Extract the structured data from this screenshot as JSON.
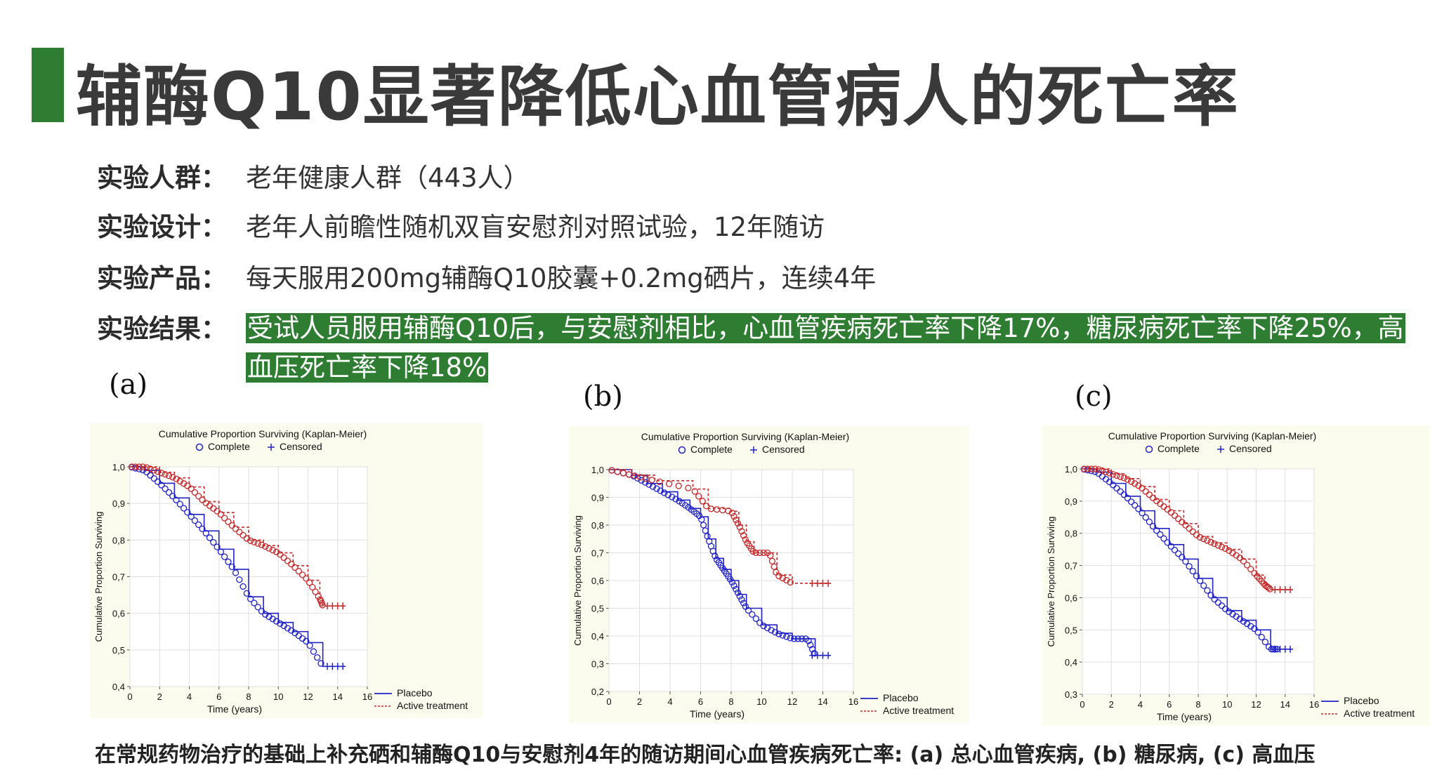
{
  "title": "辅酶Q10显著降低心血管病人的死亡率",
  "info": {
    "population": {
      "label": "实验人群：",
      "value": "老年健康人群（443人）"
    },
    "design": {
      "label": "实验设计：",
      "value": "老年人前瞻性随机双盲安慰剂对照试验，12年随访"
    },
    "product": {
      "label": "实验产品：",
      "value": "每天服用200mg辅酶Q10胶囊+0.2mg硒片，连续4年"
    },
    "result": {
      "label": "实验结果：",
      "value": "受试人员服用辅酶Q10后，与安慰剂相比，心血管疾病死亡率下降17%，糖尿病死亡率下降25%，高血压死亡率下降18%"
    }
  },
  "colors": {
    "accent": "#2e7d32",
    "placebo": "#1f22c8",
    "active": "#c62828"
  },
  "caption": "在常规药物治疗的基础上补充硒和辅酶Q10与安慰剂4年的随访期间心血管疾病死亡率: (a) 总心血管疾病, (b) 糖尿病, (c) 高血压",
  "chart_data": [
    {
      "panel": "(a)",
      "type": "line",
      "title": "Cumulative Proportion Surviving (Kaplan-Meier)",
      "legend_markers": [
        "Complete",
        "Censored"
      ],
      "xlabel": "Time (years)",
      "ylabel": "Cumulative Proportion Surviving",
      "xlim": [
        0,
        16
      ],
      "ylim": [
        0.4,
        1.0
      ],
      "xticks": [
        "0",
        "2",
        "4",
        "6",
        "8",
        "10",
        "12",
        "14",
        "16"
      ],
      "yticks": [
        "0,4",
        "0,5",
        "0,6",
        "0,7",
        "0,8",
        "0,9",
        "1,0"
      ],
      "legend_position": "bottom-right",
      "series": [
        {
          "name": "Placebo",
          "x": [
            0,
            1,
            2,
            3,
            4,
            5,
            6,
            7,
            8,
            9,
            10,
            11,
            12,
            13,
            14.5
          ],
          "y": [
            1.0,
            0.99,
            0.955,
            0.915,
            0.87,
            0.825,
            0.775,
            0.72,
            0.645,
            0.6,
            0.575,
            0.55,
            0.52,
            0.455,
            0.455
          ]
        },
        {
          "name": "Active treatment",
          "x": [
            0,
            1,
            2,
            3,
            4,
            5,
            6,
            7,
            8,
            9,
            10,
            11,
            12,
            12.8,
            13,
            14.5
          ],
          "y": [
            1.0,
            1.0,
            0.985,
            0.97,
            0.945,
            0.905,
            0.875,
            0.835,
            0.8,
            0.785,
            0.765,
            0.73,
            0.69,
            0.64,
            0.62,
            0.62
          ]
        }
      ]
    },
    {
      "panel": "(b)",
      "type": "line",
      "title": "Cumulative Proportion Surviving (Kaplan-Meier)",
      "legend_markers": [
        "Complete",
        "Censored"
      ],
      "xlabel": "Time (years)",
      "ylabel": "Cumulative Proportion Surviving",
      "xlim": [
        0,
        16
      ],
      "ylim": [
        0.2,
        1.0
      ],
      "xticks": [
        "0",
        "2",
        "4",
        "6",
        "8",
        "10",
        "12",
        "14",
        "16"
      ],
      "yticks": [
        "0,2",
        "0,3",
        "0,4",
        "0,5",
        "0,6",
        "0,7",
        "0,8",
        "0,9",
        "1,0"
      ],
      "legend_position": "bottom-right",
      "series": [
        {
          "name": "Placebo",
          "x": [
            0,
            1.5,
            2.5,
            3.5,
            4.5,
            5.3,
            6,
            6.5,
            7,
            7.5,
            8,
            8.5,
            9,
            10,
            11,
            12,
            13,
            13.5,
            14.5
          ],
          "y": [
            1.0,
            0.98,
            0.95,
            0.92,
            0.89,
            0.86,
            0.83,
            0.75,
            0.68,
            0.64,
            0.6,
            0.55,
            0.5,
            0.44,
            0.41,
            0.39,
            0.39,
            0.33,
            0.33
          ]
        },
        {
          "name": "Active treatment",
          "x": [
            0,
            1.5,
            3,
            5.5,
            6.5,
            8,
            8.5,
            9,
            9.5,
            10.5,
            11,
            12,
            14.5
          ],
          "y": [
            1.0,
            0.98,
            0.96,
            0.93,
            0.86,
            0.85,
            0.8,
            0.74,
            0.7,
            0.7,
            0.62,
            0.59,
            0.59
          ]
        }
      ]
    },
    {
      "panel": "(c)",
      "type": "line",
      "title": "Cumulative Proportion Surviving (Kaplan-Meier)",
      "legend_markers": [
        "Complete",
        "Censored"
      ],
      "xlabel": "Time (years)",
      "ylabel": "Cumulative Proportion Surviving",
      "xlim": [
        0,
        16
      ],
      "ylim": [
        0.3,
        1.0
      ],
      "xticks": [
        "0",
        "2",
        "4",
        "6",
        "8",
        "10",
        "12",
        "14",
        "16"
      ],
      "yticks": [
        "0,3",
        "0,4",
        "0,5",
        "0,6",
        "0,7",
        "0,8",
        "0,9",
        "1,0"
      ],
      "legend_position": "bottom-right",
      "series": [
        {
          "name": "Placebo",
          "x": [
            0,
            1,
            2,
            3,
            4,
            5,
            6,
            7,
            8,
            9,
            10,
            11,
            12,
            13,
            13.5,
            14.5
          ],
          "y": [
            1.0,
            0.99,
            0.955,
            0.915,
            0.87,
            0.815,
            0.765,
            0.72,
            0.66,
            0.6,
            0.56,
            0.53,
            0.5,
            0.44,
            0.44,
            0.44
          ]
        },
        {
          "name": "Active treatment",
          "x": [
            0,
            1,
            2,
            3,
            4,
            5,
            6,
            7,
            8,
            9,
            10,
            11,
            12,
            12.6,
            13,
            14.5
          ],
          "y": [
            1.0,
            1.0,
            0.985,
            0.97,
            0.945,
            0.905,
            0.87,
            0.83,
            0.79,
            0.77,
            0.75,
            0.72,
            0.67,
            0.64,
            0.625,
            0.625
          ]
        }
      ]
    }
  ]
}
